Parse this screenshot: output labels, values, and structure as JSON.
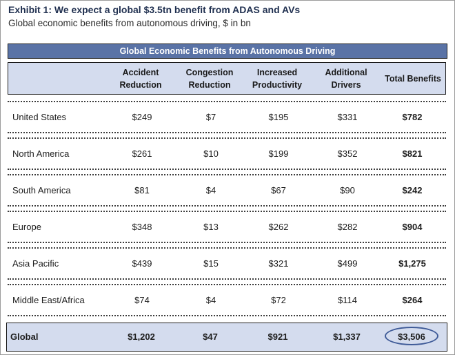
{
  "title": "Exhibit 1: We expect a global $3.5tn benefit from ADAS and AVs",
  "subtitle": "Global economic benefits from autonomous driving, $ in bn",
  "table": {
    "banner": "Global Economic Benefits from Autonomous Driving",
    "columns": [
      "Accident\nReduction",
      "Congestion\nReduction",
      "Increased\nProductivity",
      "Additional\nDrivers",
      "Total Benefits"
    ],
    "rows": [
      {
        "region": "United States",
        "values": [
          "$249",
          "$7",
          "$195",
          "$331"
        ],
        "total": "$782"
      },
      {
        "region": "North America",
        "values": [
          "$261",
          "$10",
          "$199",
          "$352"
        ],
        "total": "$821"
      },
      {
        "region": "South America",
        "values": [
          "$81",
          "$4",
          "$67",
          "$90"
        ],
        "total": "$242"
      },
      {
        "region": "Europe",
        "values": [
          "$348",
          "$13",
          "$262",
          "$282"
        ],
        "total": "$904"
      },
      {
        "region": "Asia Pacific",
        "values": [
          "$439",
          "$15",
          "$321",
          "$499"
        ],
        "total": "$1,275"
      },
      {
        "region": "Middle East/Africa",
        "values": [
          "$74",
          "$4",
          "$72",
          "$114"
        ],
        "total": "$264"
      }
    ],
    "global": {
      "region": "Global",
      "values": [
        "$1,202",
        "$47",
        "$921",
        "$1,337"
      ],
      "total": "$3,506"
    }
  },
  "colors": {
    "banner": "#5a73a6",
    "header_fill": "#d4dcee",
    "highlight_circle": "#3f5b98"
  }
}
